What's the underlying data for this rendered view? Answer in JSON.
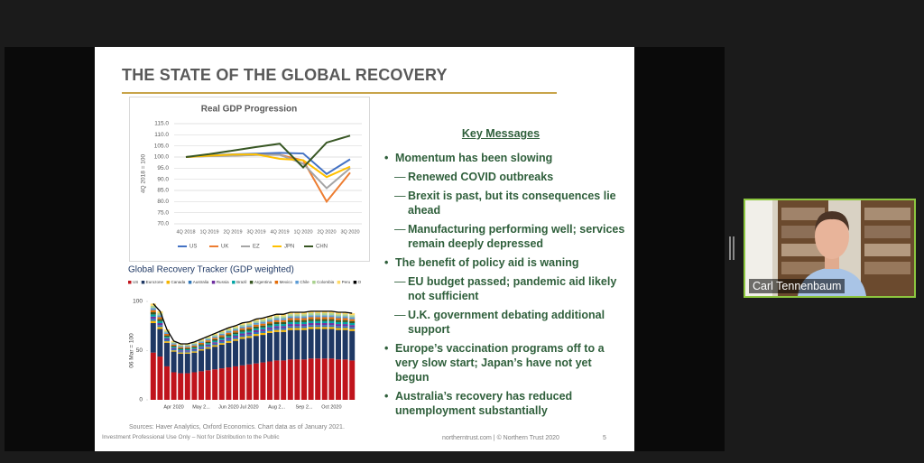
{
  "slide": {
    "title": "THE STATE OF THE GLOBAL RECOVERY",
    "key_messages": {
      "heading": "Key Messages",
      "items": [
        {
          "text": "Momentum has been slowing",
          "subitems": [
            "Renewed COVID outbreaks",
            "Brexit is past, but its consequences lie ahead",
            "Manufacturing performing well; services remain deeply depressed"
          ]
        },
        {
          "text": "The benefit of policy aid is waning",
          "subitems": [
            "EU budget passed; pandemic aid likely not sufficient",
            "U.K. government debating additional support"
          ]
        },
        {
          "text": "Europe’s vaccination programs off to a very slow start; Japan’s have not yet begun",
          "subitems": []
        },
        {
          "text": "Australia’s recovery has reduced unemployment substantially",
          "subitems": []
        }
      ]
    },
    "sources": "Sources: Haver Analytics, Oxford Economics. Chart data as of  January 2021.",
    "disclaimer": "Investment Professional Use Only – Not for Distribution to the Public",
    "footer": "northerntrust.com  |  © Northern Trust  2020",
    "page_number": 5
  },
  "presenter": {
    "name": "Carl Tennenbaum"
  },
  "chart_data": [
    {
      "type": "line",
      "title": "Real GDP Progression",
      "y_label": "4Q 2018 = 100",
      "categories": [
        "4Q 2018",
        "1Q 2019",
        "2Q 2019",
        "3Q 2019",
        "4Q 2019",
        "1Q 2020",
        "2Q 2020",
        "3Q 2020"
      ],
      "series": [
        {
          "name": "US",
          "color": "#4472c4",
          "values": [
            100,
            100.8,
            101.2,
            101.5,
            101.9,
            101.6,
            92.4,
            99
          ]
        },
        {
          "name": "UK",
          "color": "#ed7d31",
          "values": [
            100,
            100.5,
            100.6,
            101,
            101,
            98.5,
            80,
            93
          ]
        },
        {
          "name": "EZ",
          "color": "#a5a5a5",
          "values": [
            100,
            100.4,
            100.6,
            100.9,
            101,
            97,
            86,
            95
          ]
        },
        {
          "name": "JPN",
          "color": "#ffc000",
          "values": [
            100,
            100.6,
            101.1,
            101.2,
            99.2,
            98.6,
            91,
            95.7
          ]
        },
        {
          "name": "CHN",
          "color": "#375623",
          "values": [
            100,
            101.3,
            102.9,
            104.5,
            106,
            95.3,
            106.5,
            109.6
          ]
        }
      ],
      "ylim": [
        70,
        115
      ],
      "yticks": [
        {
          "value": 70,
          "label": "70.0"
        },
        {
          "value": 75,
          "label": "75.0"
        },
        {
          "value": 80,
          "label": "80.0"
        },
        {
          "value": 85,
          "label": "85.0"
        },
        {
          "value": 90,
          "label": "90.0"
        },
        {
          "value": 95,
          "label": "95.0"
        },
        {
          "value": 100,
          "label": "100.0"
        },
        {
          "value": 105,
          "label": "105.0"
        },
        {
          "value": 110,
          "label": "110.0"
        },
        {
          "value": 115,
          "label": "115.0"
        }
      ],
      "grid": true,
      "legend": "bottom"
    },
    {
      "type": "stacked_bar",
      "title": "Global Recovery Tracker (GDP weighted)",
      "y_label": "06 Mar = 100",
      "categories": [
        null,
        null,
        null,
        "Apr 2020",
        null,
        null,
        null,
        "May 2...",
        null,
        null,
        null,
        "Jun 2020",
        null,
        null,
        "Jul 2020",
        null,
        null,
        null,
        "Aug 2...",
        null,
        null,
        null,
        "Sep 2...",
        null,
        null,
        null,
        "Oct 2020",
        null,
        null,
        null
      ],
      "series": [
        {
          "name": "US",
          "color": "#c0141c",
          "values": [
            48,
            44,
            34,
            28,
            27,
            27,
            28,
            29,
            30,
            31,
            32,
            33,
            34,
            35,
            36,
            37,
            38,
            39,
            40,
            40,
            41,
            41,
            41,
            42,
            42,
            42,
            42,
            41,
            41,
            40
          ]
        },
        {
          "name": "Eurozone",
          "color": "#1f3864",
          "values": [
            30,
            28,
            24,
            21,
            20,
            20,
            20,
            21,
            22,
            23,
            24,
            25,
            26,
            27,
            27,
            28,
            28,
            29,
            29,
            29,
            30,
            30,
            30,
            30,
            30,
            30,
            30,
            30,
            30,
            30
          ]
        },
        {
          "name": "Canada",
          "color": "#f4b400",
          "values": [
            2.2,
            2,
            1.5,
            1.2,
            1.1,
            1.1,
            1.2,
            1.3,
            1.4,
            1.5,
            1.6,
            1.7,
            1.7,
            1.8,
            1.8,
            1.9,
            1.9,
            1.9,
            2,
            2,
            2,
            2,
            2,
            2,
            2,
            2,
            2,
            2,
            2,
            2
          ]
        },
        {
          "name": "Australia",
          "color": "#2e75b6",
          "values": [
            2.2,
            2,
            1.5,
            1.2,
            1.1,
            1.1,
            1.2,
            1.3,
            1.4,
            1.5,
            1.6,
            1.7,
            1.7,
            1.8,
            1.8,
            1.9,
            1.9,
            1.9,
            2,
            2,
            2,
            2,
            2,
            2,
            2,
            2,
            2,
            2,
            2,
            2
          ]
        },
        {
          "name": "Russia",
          "color": "#7030a0",
          "values": [
            2.2,
            2,
            1.5,
            1.2,
            1.1,
            1.1,
            1.2,
            1.3,
            1.4,
            1.5,
            1.6,
            1.7,
            1.7,
            1.8,
            1.8,
            1.9,
            1.9,
            1.9,
            2,
            2,
            2,
            2,
            2,
            2,
            2,
            2,
            2,
            2,
            2,
            2
          ]
        },
        {
          "name": "Brazil",
          "color": "#00a3a3",
          "values": [
            2.2,
            2,
            1.5,
            1.2,
            1.1,
            1.1,
            1.2,
            1.3,
            1.4,
            1.5,
            1.6,
            1.7,
            1.7,
            1.8,
            1.8,
            1.9,
            1.9,
            1.9,
            2,
            2,
            2,
            2,
            2,
            2,
            2,
            2,
            2,
            2,
            2,
            2
          ]
        },
        {
          "name": "Argentina",
          "color": "#385723",
          "values": [
            2.2,
            2,
            1.5,
            1.2,
            1.1,
            1.1,
            1.2,
            1.3,
            1.4,
            1.5,
            1.6,
            1.7,
            1.7,
            1.8,
            1.8,
            1.9,
            1.9,
            1.9,
            2,
            2,
            2,
            2,
            2,
            2,
            2,
            2,
            2,
            2,
            2,
            2
          ]
        },
        {
          "name": "Mexico",
          "color": "#e36c09",
          "values": [
            2.2,
            2,
            1.5,
            1.2,
            1.1,
            1.1,
            1.2,
            1.3,
            1.4,
            1.5,
            1.6,
            1.7,
            1.7,
            1.8,
            1.8,
            1.9,
            1.9,
            1.9,
            2,
            2,
            2,
            2,
            2,
            2,
            2,
            2,
            2,
            2,
            2,
            2
          ]
        },
        {
          "name": "Chile",
          "color": "#5b9bd5",
          "values": [
            2.2,
            2,
            1.5,
            1.2,
            1.1,
            1.1,
            1.2,
            1.3,
            1.4,
            1.5,
            1.6,
            1.7,
            1.7,
            1.8,
            1.8,
            1.9,
            1.9,
            1.9,
            2,
            2,
            2,
            2,
            2,
            2,
            2,
            2,
            2,
            2,
            2,
            2
          ]
        },
        {
          "name": "Colombia",
          "color": "#a9d18e",
          "values": [
            2.2,
            2,
            1.5,
            1.2,
            1.1,
            1.1,
            1.2,
            1.3,
            1.4,
            1.5,
            1.6,
            1.7,
            1.7,
            1.8,
            1.8,
            1.9,
            1.9,
            1.9,
            2,
            2,
            2,
            2,
            2,
            2,
            2,
            2,
            2,
            2,
            2,
            2
          ]
        },
        {
          "name": "Peru",
          "color": "#ffd966",
          "values": [
            2.2,
            2,
            1.5,
            1.2,
            1.1,
            1.1,
            1.2,
            1.3,
            1.4,
            1.5,
            1.6,
            1.7,
            1.7,
            1.8,
            1.8,
            1.9,
            1.9,
            1.9,
            2,
            2,
            2,
            2,
            2,
            2,
            2,
            2,
            2,
            2,
            2,
            2
          ]
        },
        {
          "name": "Overall",
          "color": "#000000",
          "type": "line",
          "values": [
            97.8,
            90,
            71.5,
            59.8,
            56.9,
            56.9,
            58.8,
            61.7,
            64.6,
            67.5,
            70.4,
            73.3,
            75.3,
            78.2,
            79.2,
            82.1,
            83.1,
            85.1,
            87,
            87,
            89,
            89,
            89,
            90,
            90,
            90,
            90,
            89,
            89,
            88
          ]
        }
      ],
      "ylim": [
        0,
        100
      ],
      "yticks": [
        0,
        50,
        100
      ],
      "legend": "top"
    }
  ]
}
